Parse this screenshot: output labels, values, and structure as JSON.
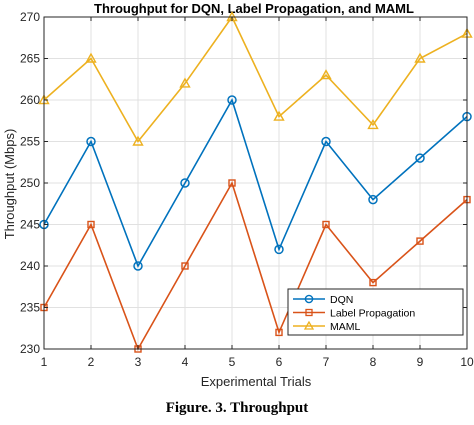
{
  "chart_data": {
    "type": "line",
    "title": "Throughput for DQN, Label Propagation, and MAML",
    "xlabel": "Experimental Trials",
    "ylabel": "Throughput (Mbps)",
    "x": [
      1,
      2,
      3,
      4,
      5,
      6,
      7,
      8,
      9,
      10
    ],
    "xlim": [
      1,
      10
    ],
    "ylim": [
      230,
      270
    ],
    "yticks": [
      230,
      235,
      240,
      245,
      250,
      255,
      260,
      265,
      270
    ],
    "grid": true,
    "legend_position": "bottom-right",
    "series": [
      {
        "name": "DQN",
        "color": "#0072BD",
        "marker": "circle",
        "values": [
          245,
          255,
          240,
          250,
          260,
          242,
          255,
          248,
          253,
          258
        ]
      },
      {
        "name": "Label Propagation",
        "color": "#D95319",
        "marker": "square",
        "values": [
          235,
          245,
          230,
          240,
          250,
          232,
          245,
          238,
          243,
          248
        ]
      },
      {
        "name": "MAML",
        "color": "#EDB120",
        "marker": "triangle",
        "values": [
          260,
          265,
          255,
          262,
          270,
          258,
          263,
          257,
          265,
          268
        ]
      }
    ]
  },
  "caption": "Figure. 3. Throughput"
}
